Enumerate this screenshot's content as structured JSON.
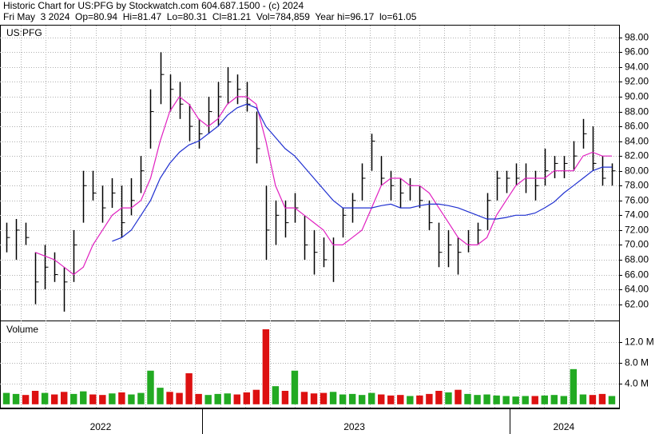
{
  "chart_data": {
    "type": "ohlc",
    "title": "Historic Chart for US:PFG by Stockwatch.com 604.687.1500 - (c) 2024",
    "subtitle": "Fri May  3 2024  Op=80.94  Hi=81.47  Lo=80.31  Cl=81.21  Vol=784,859  Year hi=96.17  lo=61.05",
    "label": "US:PFG",
    "xlim": [
      0,
      64
    ],
    "year_labels": [
      {
        "value": 10.3,
        "label": "2022"
      },
      {
        "value": 36.7,
        "label": "2023"
      },
      {
        "value": 58.5,
        "label": "2024"
      }
    ],
    "year_breaks": [
      20.9,
      52.9
    ],
    "ylim": [
      59.8,
      99.6
    ],
    "yticks": [
      {
        "value": 62,
        "label": "62.00"
      },
      {
        "value": 64,
        "label": "64.00"
      },
      {
        "value": 66,
        "label": "66.00"
      },
      {
        "value": 68,
        "label": "68.00"
      },
      {
        "value": 70,
        "label": "70.00"
      },
      {
        "value": 72,
        "label": "72.00"
      },
      {
        "value": 74,
        "label": "74.00"
      },
      {
        "value": 76,
        "label": "76.00"
      },
      {
        "value": 78,
        "label": "78.00"
      },
      {
        "value": 80,
        "label": "80.00"
      },
      {
        "value": 82,
        "label": "82.00"
      },
      {
        "value": 84,
        "label": "84.00"
      },
      {
        "value": 86,
        "label": "86.00"
      },
      {
        "value": 88,
        "label": "88.00"
      },
      {
        "value": 90,
        "label": "90.00"
      },
      {
        "value": 92,
        "label": "92.00"
      },
      {
        "value": 94,
        "label": "94.00"
      },
      {
        "value": 96,
        "label": "96.00"
      },
      {
        "value": 98,
        "label": "98.00"
      }
    ],
    "grid": true,
    "bar_color": "#000000",
    "high": [
      73,
      73.5,
      73,
      69,
      70,
      69,
      67,
      72,
      80,
      80,
      78,
      79,
      78,
      79,
      82,
      91,
      96,
      93,
      92,
      89,
      87,
      90,
      92,
      94,
      93,
      92,
      88,
      78,
      76,
      76,
      77,
      74,
      72,
      71,
      71,
      75,
      77,
      81,
      85,
      82,
      80,
      79,
      79,
      78,
      76,
      73,
      72,
      71,
      72,
      73,
      77,
      80,
      80,
      81,
      81,
      80,
      83,
      82,
      82,
      84,
      87,
      86,
      82,
      81
    ],
    "low": [
      69,
      68,
      70,
      62,
      64,
      65,
      61,
      65,
      73,
      76,
      73,
      75,
      71,
      74,
      77,
      83,
      89,
      88,
      87,
      84,
      83,
      85,
      86,
      89,
      89,
      88,
      81,
      68,
      70,
      71,
      73,
      68,
      66,
      67,
      65,
      71,
      73,
      76,
      80,
      78,
      76,
      75,
      76,
      75,
      72,
      67,
      67,
      66,
      69,
      70,
      72,
      76,
      77,
      78,
      77,
      76,
      78,
      79,
      79,
      80,
      83,
      80,
      78,
      78
    ],
    "close": [
      71,
      72,
      71,
      65,
      67,
      66,
      65,
      70,
      78,
      77,
      75,
      77,
      73,
      76,
      80,
      88,
      93,
      91,
      89,
      86,
      85,
      88,
      90,
      92,
      91,
      89,
      83,
      72,
      74,
      73,
      75,
      70,
      69,
      68,
      70,
      74,
      76,
      79,
      84,
      79,
      78,
      77,
      78,
      76,
      73,
      69,
      70,
      69,
      70,
      72,
      76,
      79,
      79,
      79,
      79,
      78,
      80,
      81,
      81,
      82,
      85,
      81,
      79,
      80
    ],
    "moving_averages": [
      {
        "color": "#e020c0",
        "values": [
          null,
          null,
          null,
          69,
          68.5,
          68,
          67,
          66,
          67,
          70,
          72,
          74,
          75,
          75,
          76,
          79,
          84,
          88,
          90,
          89,
          87,
          86,
          87,
          89,
          90,
          90,
          89,
          84,
          78,
          75,
          75,
          74,
          73,
          72,
          70,
          70,
          71,
          72,
          75,
          78,
          79,
          79,
          78,
          78,
          77,
          75,
          73,
          71,
          70,
          70,
          71,
          74,
          76,
          78,
          79,
          79,
          79,
          80,
          80,
          80,
          82,
          82.5,
          82,
          82
        ]
      },
      {
        "color": "#2030d0",
        "values": [
          null,
          null,
          null,
          null,
          null,
          null,
          null,
          null,
          null,
          null,
          null,
          70.5,
          71,
          72,
          74,
          76,
          79,
          81,
          82.5,
          83.5,
          84,
          85,
          86,
          87.5,
          88.5,
          89,
          88.5,
          86,
          84.5,
          83,
          82,
          80.5,
          79,
          77.5,
          76,
          75,
          75,
          75,
          75,
          75.3,
          75.5,
          75,
          75,
          75.3,
          75.5,
          75.5,
          75.3,
          75,
          74.5,
          74,
          73.5,
          73.5,
          73.7,
          74,
          74,
          74.3,
          75,
          75.8,
          77,
          78,
          79,
          80,
          80.5,
          80.5
        ]
      }
    ],
    "volume": {
      "label": "Volume",
      "ylim": [
        -0.8,
        16.2
      ],
      "yticks": [
        {
          "value": 4,
          "label": "4.0 M"
        },
        {
          "value": 8,
          "label": "8.0 M"
        },
        {
          "value": 12,
          "label": "12.0 M"
        }
      ],
      "up_color": "#22aa22",
      "down_color": "#dd1111",
      "values": [
        2.2,
        2.0,
        1.8,
        2.6,
        2.2,
        1.9,
        2.4,
        2.0,
        2.5,
        1.9,
        1.8,
        2.1,
        2.3,
        1.9,
        2.2,
        6.5,
        3.2,
        2.4,
        2.2,
        6.0,
        2.0,
        1.8,
        2.0,
        2.1,
        1.9,
        2.3,
        2.8,
        14.5,
        3.5,
        2.6,
        6.5,
        2.4,
        2.1,
        2.2,
        2.4,
        1.9,
        2.0,
        1.8,
        2.2,
        1.9,
        1.7,
        1.8,
        1.6,
        1.7,
        2.0,
        2.6,
        2.3,
        2.8,
        2.0,
        1.8,
        1.9,
        1.7,
        1.6,
        1.5,
        1.6,
        1.6,
        1.7,
        1.8,
        1.6,
        6.8,
        1.9,
        1.8,
        2.0,
        1.6
      ]
    }
  }
}
